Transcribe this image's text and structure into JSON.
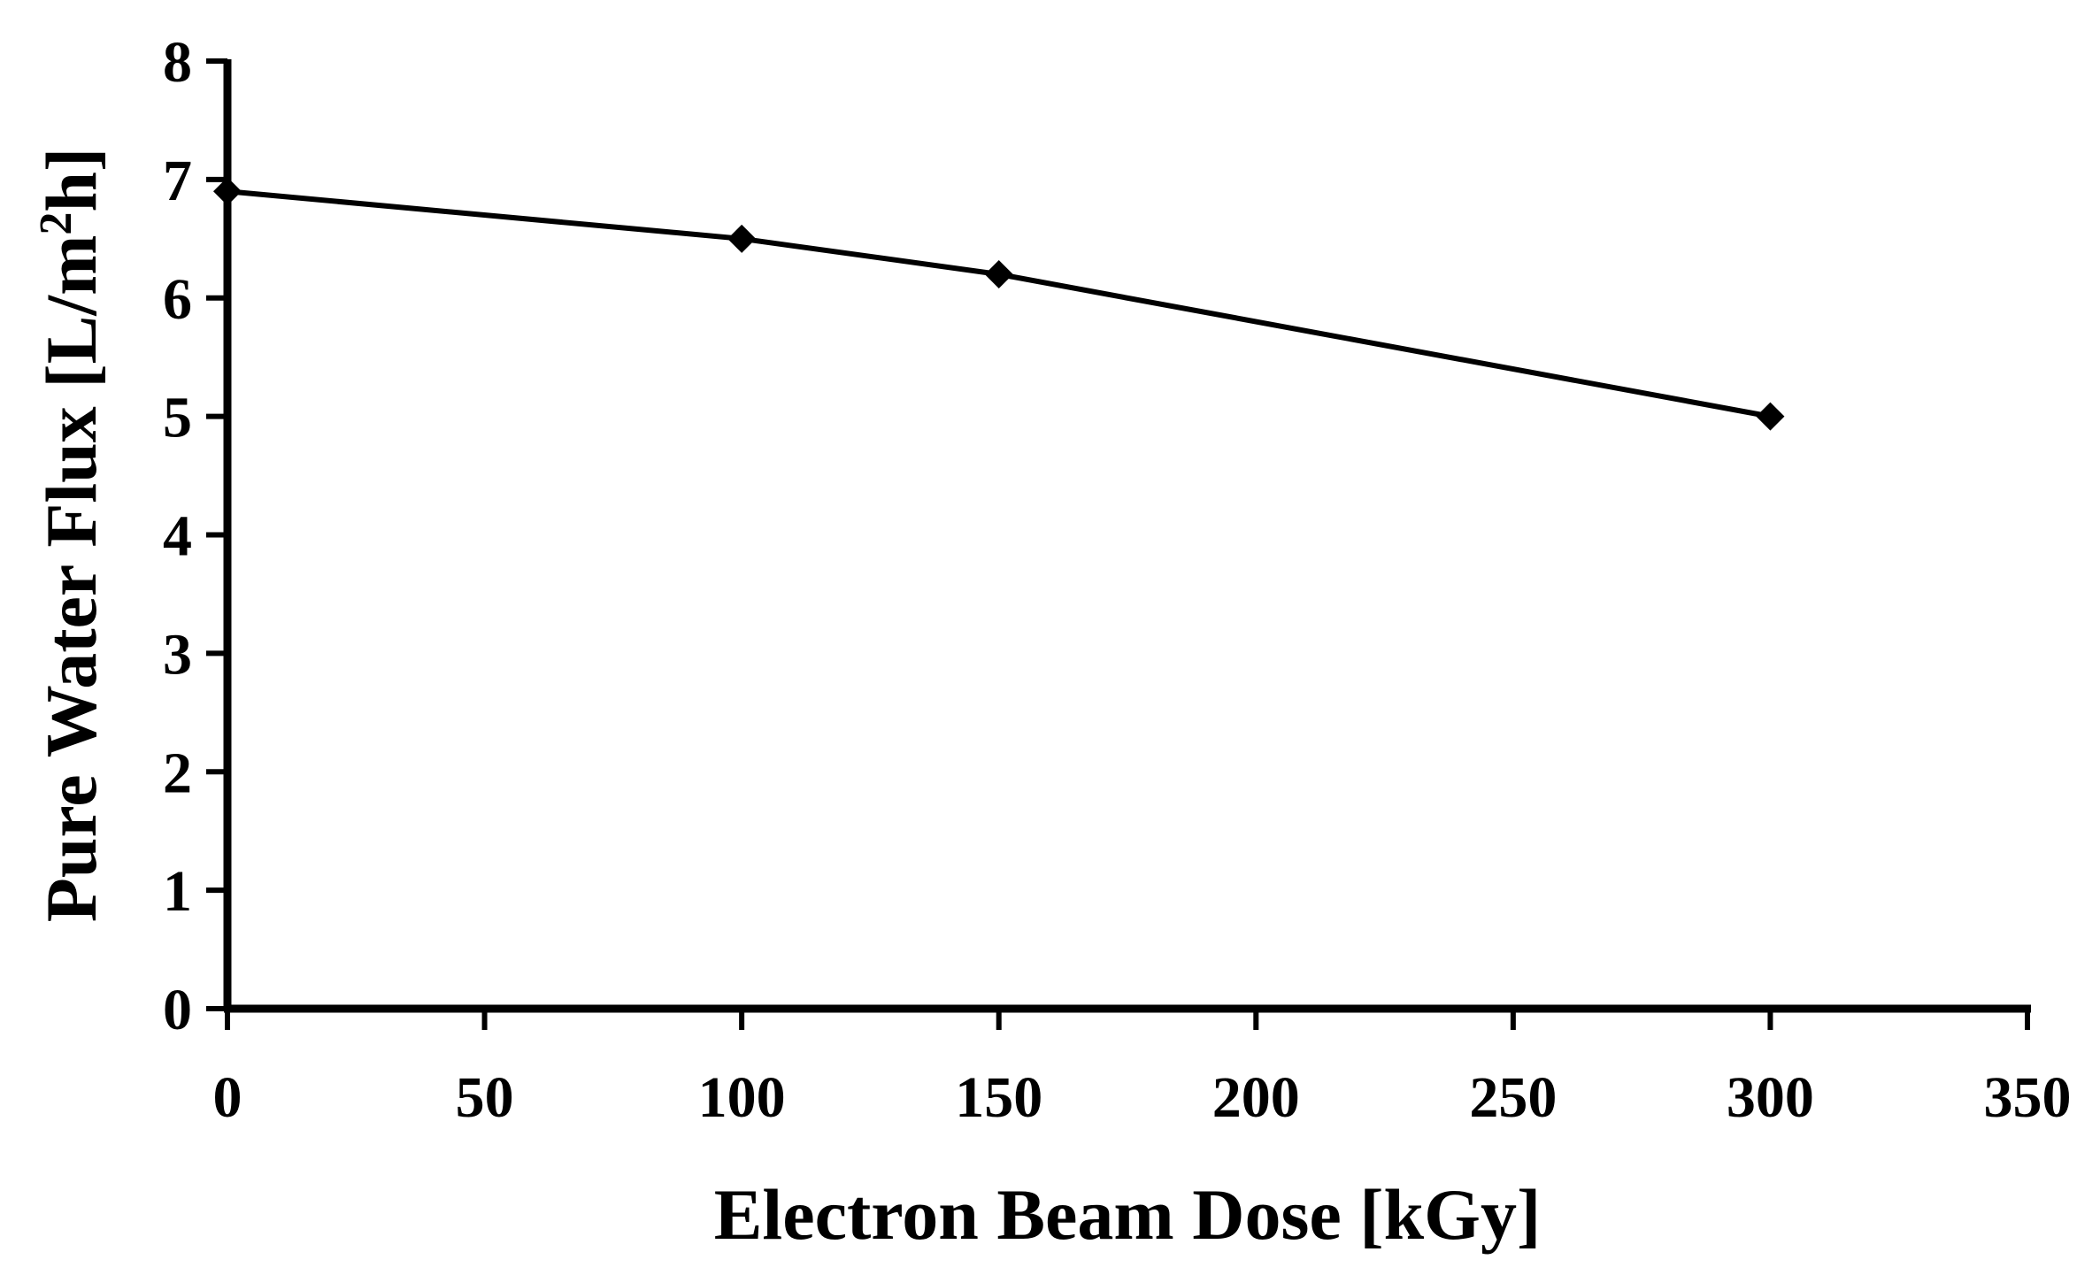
{
  "chart_data": {
    "type": "line",
    "title": "",
    "xlabel": "Electron Beam Dose [kGy]",
    "ylabel": {
      "main": "Pure Water Flux [L/m",
      "superscript": "2",
      "tail": "h]"
    },
    "xlim": [
      0,
      350
    ],
    "ylim": [
      0,
      8
    ],
    "xticks": [
      0,
      50,
      100,
      150,
      200,
      250,
      300,
      350
    ],
    "yticks": [
      0,
      1,
      2,
      3,
      4,
      5,
      6,
      7,
      8
    ],
    "grid": false,
    "legend": "none",
    "series": [
      {
        "x": [
          0,
          100,
          150,
          300
        ],
        "y": [
          6.9,
          6.5,
          6.2,
          5.0
        ],
        "marker": "diamond",
        "color": "#000000"
      }
    ]
  }
}
